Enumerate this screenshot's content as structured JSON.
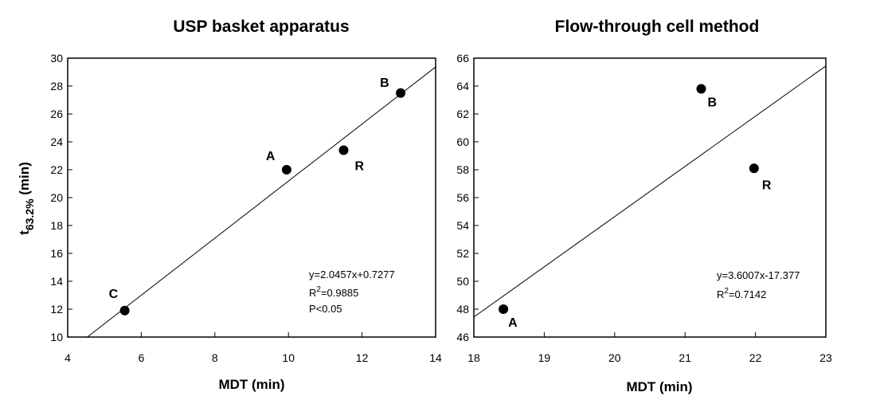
{
  "chart_data": [
    {
      "type": "scatter",
      "title": "USP basket apparatus",
      "xlabel": "MDT (min)",
      "ylabel": {
        "main": "t",
        "sub": "63.2%",
        "rest": " (min)"
      },
      "xlim": [
        4,
        14
      ],
      "ylim": [
        10,
        30
      ],
      "xticks": [
        4,
        6,
        8,
        10,
        12,
        14
      ],
      "yticks": [
        10,
        12,
        14,
        16,
        18,
        20,
        22,
        24,
        26,
        28,
        30
      ],
      "points": [
        {
          "label": "C",
          "x": 5.55,
          "y": 11.9
        },
        {
          "label": "A",
          "x": 9.95,
          "y": 22.0
        },
        {
          "label": "R",
          "x": 11.5,
          "y": 23.4
        },
        {
          "label": "B",
          "x": 13.05,
          "y": 27.5
        }
      ],
      "fit": {
        "slope": 2.0457,
        "intercept": 0.7277
      },
      "annotations": [
        {
          "text": "y=2.0457x+0.7277"
        },
        {
          "base": "R",
          "sup": "2",
          "rest": "=0.9885"
        },
        {
          "text": "P<0.05"
        }
      ],
      "grid": false
    },
    {
      "type": "scatter",
      "title": "Flow-through cell method",
      "xlabel": "MDT (min)",
      "xlim": [
        18,
        23
      ],
      "ylim": [
        46,
        66
      ],
      "xticks": [
        18,
        19,
        20,
        21,
        22,
        23
      ],
      "yticks": [
        46,
        48,
        50,
        52,
        54,
        56,
        58,
        60,
        62,
        64,
        66
      ],
      "points": [
        {
          "label": "A",
          "x": 18.42,
          "y": 48.0
        },
        {
          "label": "B",
          "x": 21.23,
          "y": 63.8
        },
        {
          "label": "R",
          "x": 21.98,
          "y": 58.1
        }
      ],
      "fit": {
        "slope": 3.6007,
        "intercept": -17.377
      },
      "annotations": [
        {
          "text": "y=3.6007x-17.377"
        },
        {
          "base": "R",
          "sup": "2",
          "rest": "=0.7142"
        }
      ],
      "grid": false
    }
  ]
}
